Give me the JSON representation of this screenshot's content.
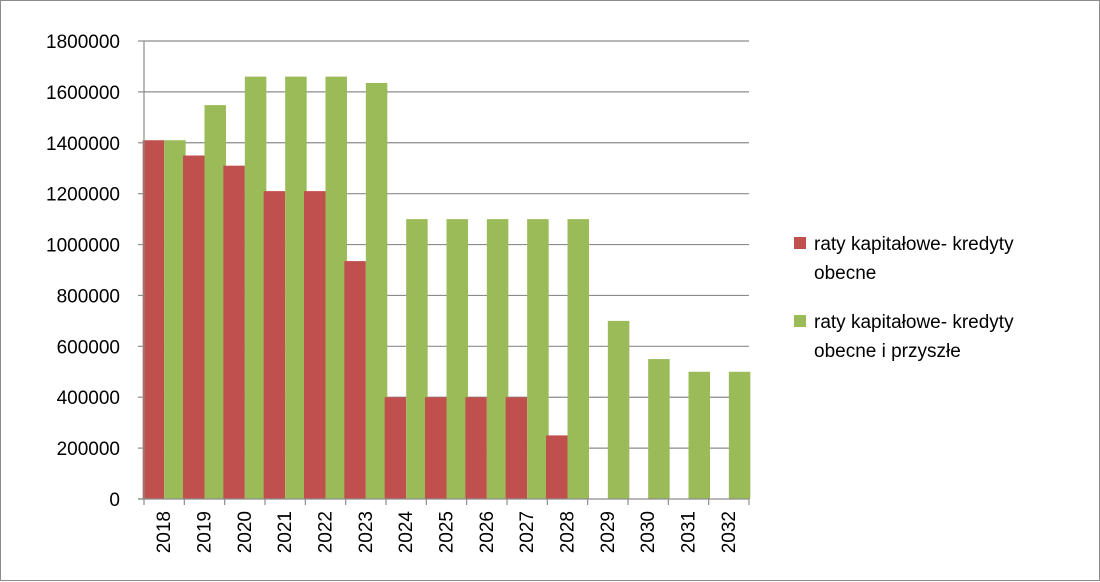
{
  "chart_data": {
    "type": "bar",
    "title": "",
    "xlabel": "",
    "ylabel": "",
    "ylim": [
      0,
      1800000
    ],
    "yticks": [
      0,
      200000,
      400000,
      600000,
      800000,
      1000000,
      1200000,
      1400000,
      1600000,
      1800000
    ],
    "ytick_labels": [
      "0",
      "200000",
      "400000",
      "600000",
      "800000",
      "1000000",
      "1200000",
      "1400000",
      "1600000",
      "1800000"
    ],
    "grid": true,
    "legend_position": "right",
    "categories": [
      "2018",
      "2019",
      "2020",
      "2021",
      "2022",
      "2023",
      "2024",
      "2025",
      "2026",
      "2027",
      "2028",
      "2029",
      "2030",
      "2031",
      "2032"
    ],
    "series": [
      {
        "name": "raty kapitałowe- kredyty obecne",
        "legend_lines": [
          "raty kapitałowe- kredyty",
          "obecne"
        ],
        "color": "#c0504d",
        "values": [
          1410000,
          1350000,
          1310000,
          1210000,
          1210000,
          935000,
          400000,
          400000,
          400000,
          400000,
          250000,
          0,
          0,
          0,
          0
        ]
      },
      {
        "name": "raty kapitałowe- kredyty obecne i przyszłe",
        "legend_lines": [
          "raty kapitałowe- kredyty",
          "obecne i przyszłe"
        ],
        "color": "#9bbb59",
        "values": [
          1410000,
          1548000,
          1660000,
          1660000,
          1660000,
          1635000,
          1100000,
          1100000,
          1100000,
          1100000,
          1100000,
          700000,
          550000,
          500000,
          500000
        ]
      }
    ]
  }
}
